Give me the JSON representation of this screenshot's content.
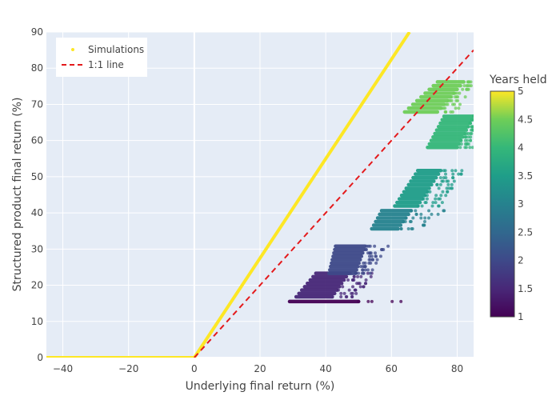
{
  "chart_data": {
    "type": "scatter",
    "xlabel": "Underlying final return (%)",
    "ylabel": "Structured product final return (%)",
    "xlim": [
      -45,
      85
    ],
    "ylim": [
      0,
      90
    ],
    "x_ticks": [
      "−40",
      "−20",
      "0",
      "20",
      "40",
      "60",
      "80"
    ],
    "y_ticks": [
      "0",
      "10",
      "20",
      "30",
      "40",
      "50",
      "60",
      "70",
      "80",
      "90"
    ],
    "grid": true,
    "legend": {
      "placement": "top-left",
      "entries": [
        "Simulations",
        "1:1 line"
      ]
    },
    "colorbar": {
      "title": "Years held",
      "colorscale": "viridis",
      "range": [
        1,
        5
      ],
      "ticks": [
        "1",
        "1.5",
        "2",
        "2.5",
        "3",
        "3.5",
        "4",
        "4.5",
        "5"
      ]
    },
    "series": [
      {
        "name": "Simulations",
        "kind": "payoff",
        "color": "#fde725",
        "points": [
          [
            -45,
            0
          ],
          [
            0,
            0
          ],
          [
            65.5,
            90
          ]
        ]
      },
      {
        "name": "1:1 line",
        "kind": "reference",
        "color": "#e41a1c",
        "dash": "dashed",
        "points": [
          [
            0,
            0
          ],
          [
            85,
            85
          ]
        ]
      }
    ],
    "clusters": [
      {
        "years": 1,
        "y_min": 15.5,
        "y_max": 15.5,
        "x_dense_start": [
          29,
          29
        ],
        "x_dense_end": [
          50,
          50
        ],
        "x_scatter_end": [
          64,
          64
        ]
      },
      {
        "years": 1.5,
        "y_min": 16.8,
        "y_max": 23.3,
        "x_dense_start": [
          31,
          37
        ],
        "x_dense_end": [
          42,
          47
        ],
        "x_scatter_end": [
          50,
          55
        ]
      },
      {
        "years": 2,
        "y_min": 23.3,
        "y_max": 30.8,
        "x_dense_start": [
          41,
          43
        ],
        "x_dense_end": [
          49,
          52
        ],
        "x_scatter_end": [
          54,
          59
        ]
      },
      {
        "years": 3,
        "y_min": 35.6,
        "y_max": 40.6,
        "x_dense_start": [
          54,
          57
        ],
        "x_dense_end": [
          62,
          66
        ],
        "x_scatter_end": [
          69,
          77
        ]
      },
      {
        "years": 3.5,
        "y_min": 41.9,
        "y_max": 51.7,
        "x_dense_start": [
          61,
          68
        ],
        "x_dense_end": [
          68,
          75
        ],
        "x_scatter_end": [
          75,
          82
        ]
      },
      {
        "years": 4,
        "y_min": 58.1,
        "y_max": 66.7,
        "x_dense_start": [
          71,
          76
        ],
        "x_dense_end": [
          80,
          85
        ],
        "x_scatter_end": [
          85,
          85
        ]
      },
      {
        "years": 4.5,
        "y_min": 67.9,
        "y_max": 76.2,
        "x_dense_start": [
          64,
          74
        ],
        "x_dense_end": [
          74,
          82
        ],
        "x_scatter_end": [
          80,
          85
        ]
      }
    ]
  }
}
